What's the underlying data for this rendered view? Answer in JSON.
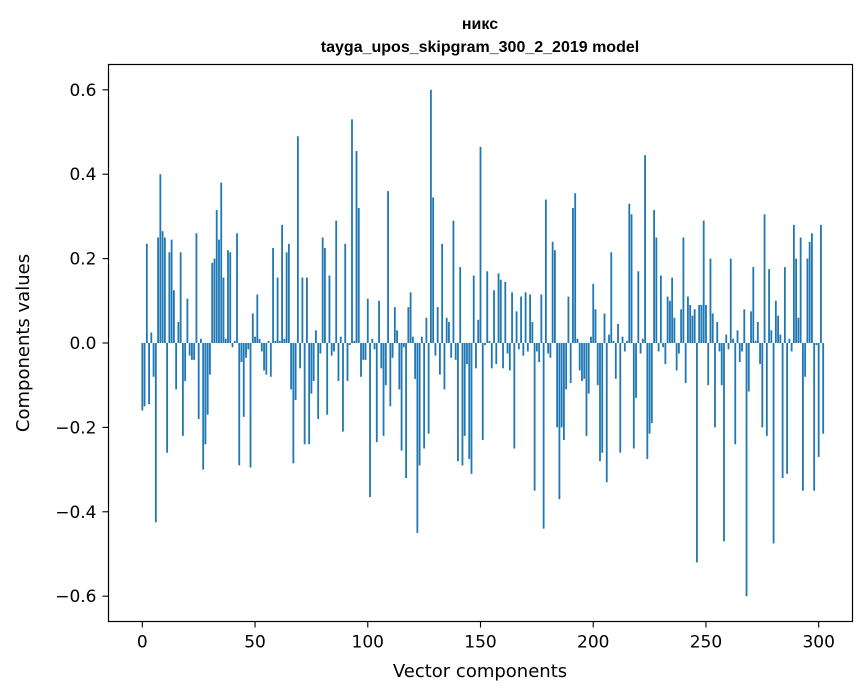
{
  "chart_data": {
    "type": "bar",
    "title": "никс",
    "subtitle": "tayga_upos_skipgram_300_2_2019 model",
    "xlabel": "Vector components",
    "ylabel": "Components values",
    "xlim": [
      -15,
      315
    ],
    "ylim": [
      -0.66,
      0.66
    ],
    "xticks": [
      0,
      50,
      100,
      150,
      200,
      250,
      300
    ],
    "xtick_labels": [
      "0",
      "50",
      "100",
      "150",
      "200",
      "250",
      "300"
    ],
    "yticks": [
      -0.6,
      -0.4,
      -0.2,
      0.0,
      0.2,
      0.4,
      0.6
    ],
    "ytick_labels": [
      "−0.6",
      "−0.4",
      "−0.2",
      "0.0",
      "0.2",
      "0.4",
      "0.6"
    ],
    "bar_color": "#1f77b4",
    "grid": false,
    "x_start": 0,
    "values": [
      -0.16,
      -0.15,
      0.235,
      -0.145,
      0.025,
      -0.08,
      -0.425,
      0.25,
      0.4,
      0.265,
      0.25,
      -0.26,
      0.215,
      0.245,
      0.125,
      -0.11,
      0.05,
      0.215,
      -0.22,
      -0.09,
      0.105,
      -0.03,
      -0.04,
      -0.04,
      0.26,
      -0.18,
      0.01,
      -0.3,
      -0.24,
      -0.17,
      -0.075,
      0.19,
      0.2,
      0.315,
      0.245,
      0.38,
      0.155,
      0.01,
      0.22,
      0.215,
      -0.01,
      0.005,
      0.26,
      -0.29,
      -0.045,
      -0.175,
      -0.035,
      -0.015,
      -0.295,
      0.07,
      0.015,
      0.115,
      0.01,
      -0.02,
      -0.065,
      -0.075,
      0.005,
      -0.08,
      0.225,
      0.005,
      0.155,
      0.005,
      0.28,
      0.01,
      0.215,
      0.235,
      -0.11,
      -0.285,
      -0.135,
      0.49,
      -0.06,
      0.155,
      -0.24,
      0.155,
      -0.24,
      -0.12,
      -0.09,
      0.03,
      -0.18,
      -0.025,
      0.25,
      0.225,
      -0.17,
      0.16,
      -0.03,
      -0.02,
      0.29,
      -0.09,
      0.015,
      -0.21,
      0.235,
      -0.09,
      -0.005,
      0.53,
      0.005,
      0.455,
      0.32,
      -0.08,
      -0.04,
      -0.04,
      0.105,
      -0.365,
      0.01,
      -0.015,
      -0.235,
      0.1,
      -0.06,
      -0.22,
      -0.1,
      0.36,
      -0.15,
      -0.035,
      0.085,
      0.03,
      -0.11,
      -0.255,
      -0.01,
      -0.32,
      0.085,
      0.12,
      0.015,
      -0.085,
      -0.45,
      -0.29,
      0.015,
      -0.25,
      0.06,
      -0.215,
      0.6,
      0.345,
      -0.03,
      0.085,
      -0.075,
      0.235,
      -0.11,
      0.06,
      0.05,
      -0.035,
      0.29,
      -0.04,
      -0.28,
      0.18,
      -0.29,
      -0.22,
      -0.05,
      -0.275,
      -0.31,
      0.16,
      -0.06,
      0.055,
      0.465,
      -0.23,
      -0.005,
      0.17,
      0.005,
      -0.06,
      0.125,
      -0.05,
      0.165,
      0.15,
      -0.06,
      0.145,
      -0.025,
      -0.065,
      0.12,
      -0.25,
      0.075,
      -0.015,
      0.11,
      -0.03,
      0.12,
      -0.02,
      0.115,
      0.05,
      -0.35,
      -0.02,
      -0.045,
      0.115,
      -0.44,
      0.34,
      -0.025,
      -0.035,
      0.24,
      0.22,
      -0.2,
      -0.37,
      -0.2,
      -0.23,
      -0.11,
      0.11,
      -0.095,
      0.32,
      0.355,
      0.01,
      -0.065,
      -0.09,
      -0.085,
      -0.22,
      -0.12,
      0.015,
      0.14,
      0.08,
      -0.1,
      -0.28,
      -0.26,
      0.07,
      -0.33,
      0.02,
      0.215,
      0.005,
      -0.085,
      0.045,
      -0.26,
      0.015,
      -0.02,
      0.005,
      0.33,
      0.305,
      -0.25,
      -0.13,
      0.17,
      -0.025,
      0.01,
      0.445,
      -0.275,
      -0.215,
      -0.19,
      0.315,
      0.25,
      -0.02,
      0.16,
      -0.01,
      -0.05,
      0.11,
      0.1,
      0.155,
      0.06,
      -0.065,
      -0.025,
      0.08,
      0.25,
      -0.095,
      0.11,
      0.09,
      0.065,
      0.08,
      -0.52,
      0.09,
      0.09,
      0.29,
      0.09,
      -0.1,
      0.2,
      0.07,
      -0.2,
      0.05,
      -0.02,
      -0.1,
      -0.47,
      0.02,
      -0.015,
      0.2,
      0.01,
      -0.24,
      0.03,
      -0.045,
      -0.02,
      0.08,
      -0.6,
      -0.115,
      0.075,
      0.18,
      0.005,
      0.05,
      -0.05,
      -0.2,
      0.305,
      -0.22,
      0.175,
      0.03,
      -0.475,
      0.1,
      0.065,
      0.02,
      -0.32,
      0.18,
      -0.31,
      0.01,
      -0.02,
      0.28,
      0.2,
      0.06,
      0.25,
      -0.35,
      -0.08,
      0.2,
      0.24,
      0.26,
      -0.35,
      -0.005,
      -0.27,
      0.28,
      -0.215
    ]
  }
}
